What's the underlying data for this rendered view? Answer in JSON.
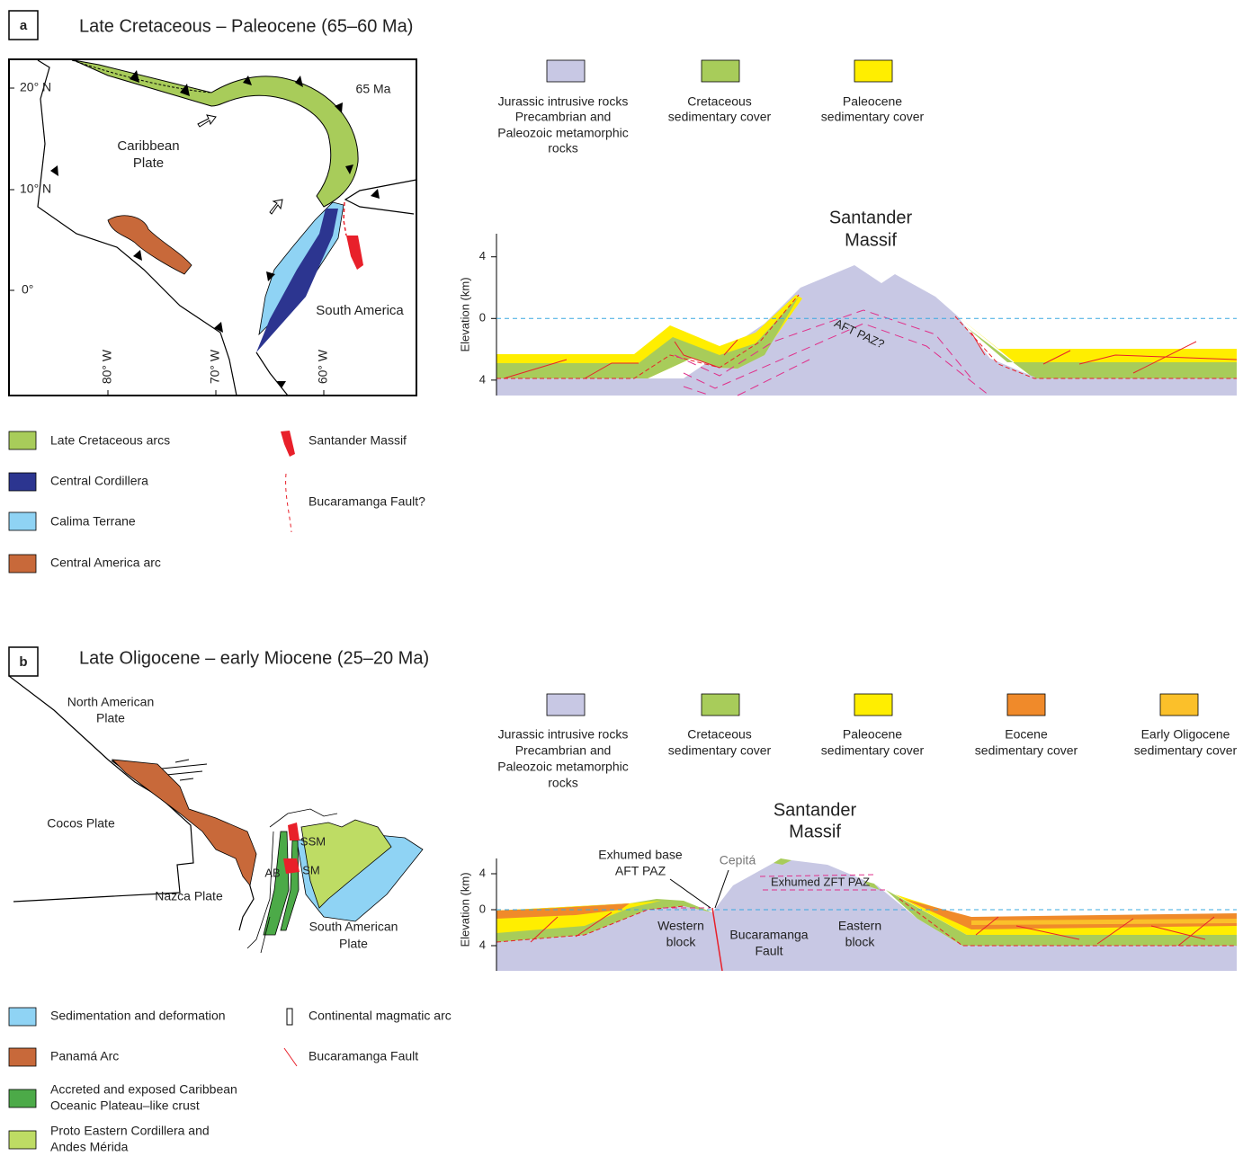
{
  "panel_a": {
    "label": "a",
    "title": "Late Cretaceous – Paleocene (65–60 Ma)",
    "map": {
      "lat_labels": [
        "20° N",
        "10° N",
        "0°"
      ],
      "lon_labels": [
        "80° W",
        "70° W",
        "60° W"
      ],
      "age": "65 Ma",
      "caribbean_plate": [
        "Caribbean",
        "Plate"
      ],
      "south_america": "South America"
    },
    "legend": [
      "Late Cretaceous arcs",
      "Central Cordillera",
      "Calima Terrane",
      "Central America arc",
      "Santander Massif",
      "Bucaramanga Fault?"
    ],
    "section_legend": [
      [
        "Jurassic intrusive rocks",
        "Precambrian and",
        "Paleozoic metamorphic",
        "rocks"
      ],
      [
        "Cretaceous",
        "sedimentary cover"
      ],
      [
        "Paleocene",
        "sedimentary cover"
      ]
    ],
    "section": {
      "title": [
        "Santander",
        "Massif"
      ],
      "y_label": "Elevation (km)",
      "ylim": [
        -5,
        5.5
      ],
      "yticks": [
        4,
        0,
        {
          "value": -4,
          "label": "4"
        }
      ],
      "annotation": "AFT PAZ?"
    }
  },
  "panel_b": {
    "label": "b",
    "title": "Late Oligocene – early Miocene (25–20 Ma)",
    "map": {
      "north_american_plate": [
        "North American",
        "Plate"
      ],
      "cocos_plate": "Cocos Plate",
      "nazca_plate": "Nazca Plate",
      "south_american_plate": [
        "South American",
        "Plate"
      ],
      "ssm": "SSM",
      "sm": "SM",
      "ab": "AB"
    },
    "legend": [
      [
        "Sedimentation and deformation"
      ],
      [
        "Panamá Arc"
      ],
      [
        "Accreted and exposed Caribbean",
        "Oceanic Plateau–like crust"
      ],
      [
        "Proto Eastern Cordillera and",
        "Andes Mérida"
      ],
      [
        "Continental magmatic arc"
      ],
      [
        "Bucaramanga Fault"
      ]
    ],
    "section_legend": [
      [
        "Jurassic intrusive rocks",
        "Precambrian and",
        "Paleozoic metamorphic",
        "rocks"
      ],
      [
        "Cretaceous",
        "sedimentary cover"
      ],
      [
        "Paleocene",
        "sedimentary cover"
      ],
      [
        "Eocene",
        "sedimentary cover"
      ],
      [
        "Early Oligocene",
        "sedimentary cover"
      ]
    ],
    "section": {
      "title": [
        "Santander",
        "Massif"
      ],
      "y_label": "Elevation (km)",
      "ylim": [
        -6.8,
        5.7
      ],
      "yticks": [
        4,
        0,
        {
          "value": -4,
          "label": "4"
        }
      ],
      "annotations": {
        "exhumed_base": [
          "Exhumed base",
          "AFT PAZ"
        ],
        "cepita": "Cepitá",
        "exhumed_zft": "Exhumed ZFT PAZ",
        "western_block": [
          "Western",
          "block"
        ],
        "bucaramanga_fault": [
          "Bucaramanga",
          "Fault"
        ],
        "eastern_block": [
          "Eastern",
          "block"
        ]
      }
    }
  }
}
